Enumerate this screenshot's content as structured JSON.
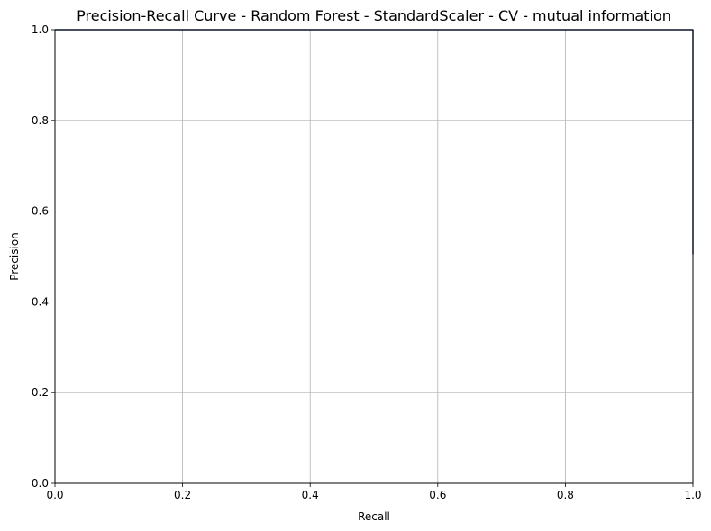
{
  "chart_data": {
    "type": "line",
    "title": "Precision-Recall Curve - Random Forest - StandardScaler - CV - mutual information",
    "xlabel": "Recall",
    "ylabel": "Precision",
    "xlim": [
      0.0,
      1.0
    ],
    "ylim": [
      0.0,
      1.0
    ],
    "grid": true,
    "x_ticks": [
      0.0,
      0.2,
      0.4,
      0.6,
      0.8,
      1.0
    ],
    "x_tick_labels": [
      "0.0",
      "0.2",
      "0.4",
      "0.6",
      "0.8",
      "1.0"
    ],
    "y_ticks": [
      0.0,
      0.2,
      0.4,
      0.6,
      0.8,
      1.0
    ],
    "y_tick_labels": [
      "0.0",
      "0.2",
      "0.4",
      "0.6",
      "0.8",
      "1.0"
    ],
    "series": [
      {
        "name": "Precision-Recall",
        "color": "#1f3a6e",
        "x": [
          0.0,
          1.0,
          1.0
        ],
        "y": [
          1.0,
          1.0,
          0.505
        ]
      }
    ]
  }
}
